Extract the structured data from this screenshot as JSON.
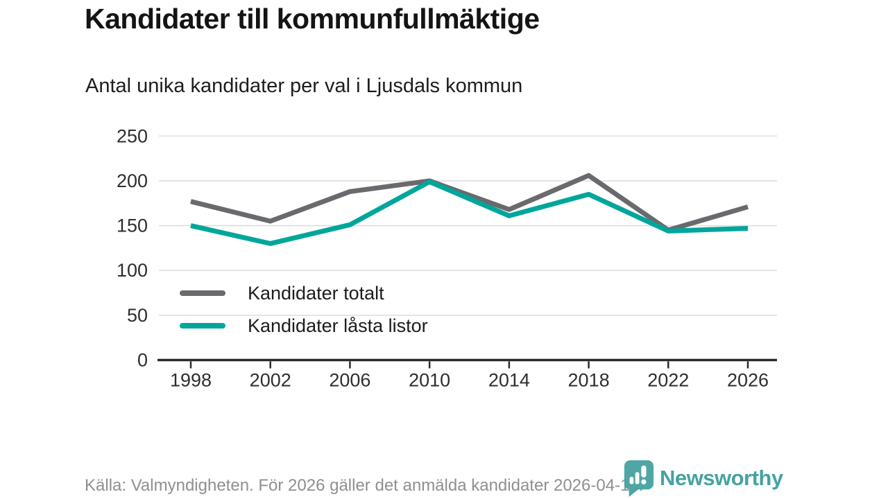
{
  "header": {
    "title": "Kandidater till kommunfullmäktige",
    "subtitle": "Antal unika kandidater per val i Ljusdals kommun"
  },
  "footer": {
    "source": "Källa: Valmyndigheten. För 2026 gäller det anmälda kandidater 2026-04-10."
  },
  "logo": {
    "text": "Newsworthy",
    "color": "#46a2a1"
  },
  "colors": {
    "series_total": "#6a6a6e",
    "series_locked": "#00a69b",
    "gridline": "#dcdcdc",
    "axis": "#2b2b2b",
    "tick_label": "#2e2e2e",
    "legend_label": "#1c1c1c"
  },
  "chart_data": {
    "type": "line",
    "title": "Kandidater till kommunfullmäktige",
    "subtitle": "Antal unika kandidater per val i Ljusdals kommun",
    "x": [
      1998,
      2002,
      2006,
      2010,
      2014,
      2018,
      2022,
      2026
    ],
    "series": [
      {
        "name": "Kandidater totalt",
        "color": "#6a6a6e",
        "values": [
          177,
          155,
          188,
          200,
          168,
          206,
          145,
          171
        ]
      },
      {
        "name": "Kandidater låsta listor",
        "color": "#00a69b",
        "values": [
          150,
          130,
          151,
          199,
          161,
          185,
          144,
          147
        ]
      }
    ],
    "xlabel": "",
    "ylabel": "",
    "ylim": [
      0,
      250
    ],
    "yticks": [
      0,
      50,
      100,
      150,
      200,
      250
    ],
    "grid": "horizontal",
    "legend_position": "inside-bottom-left"
  }
}
